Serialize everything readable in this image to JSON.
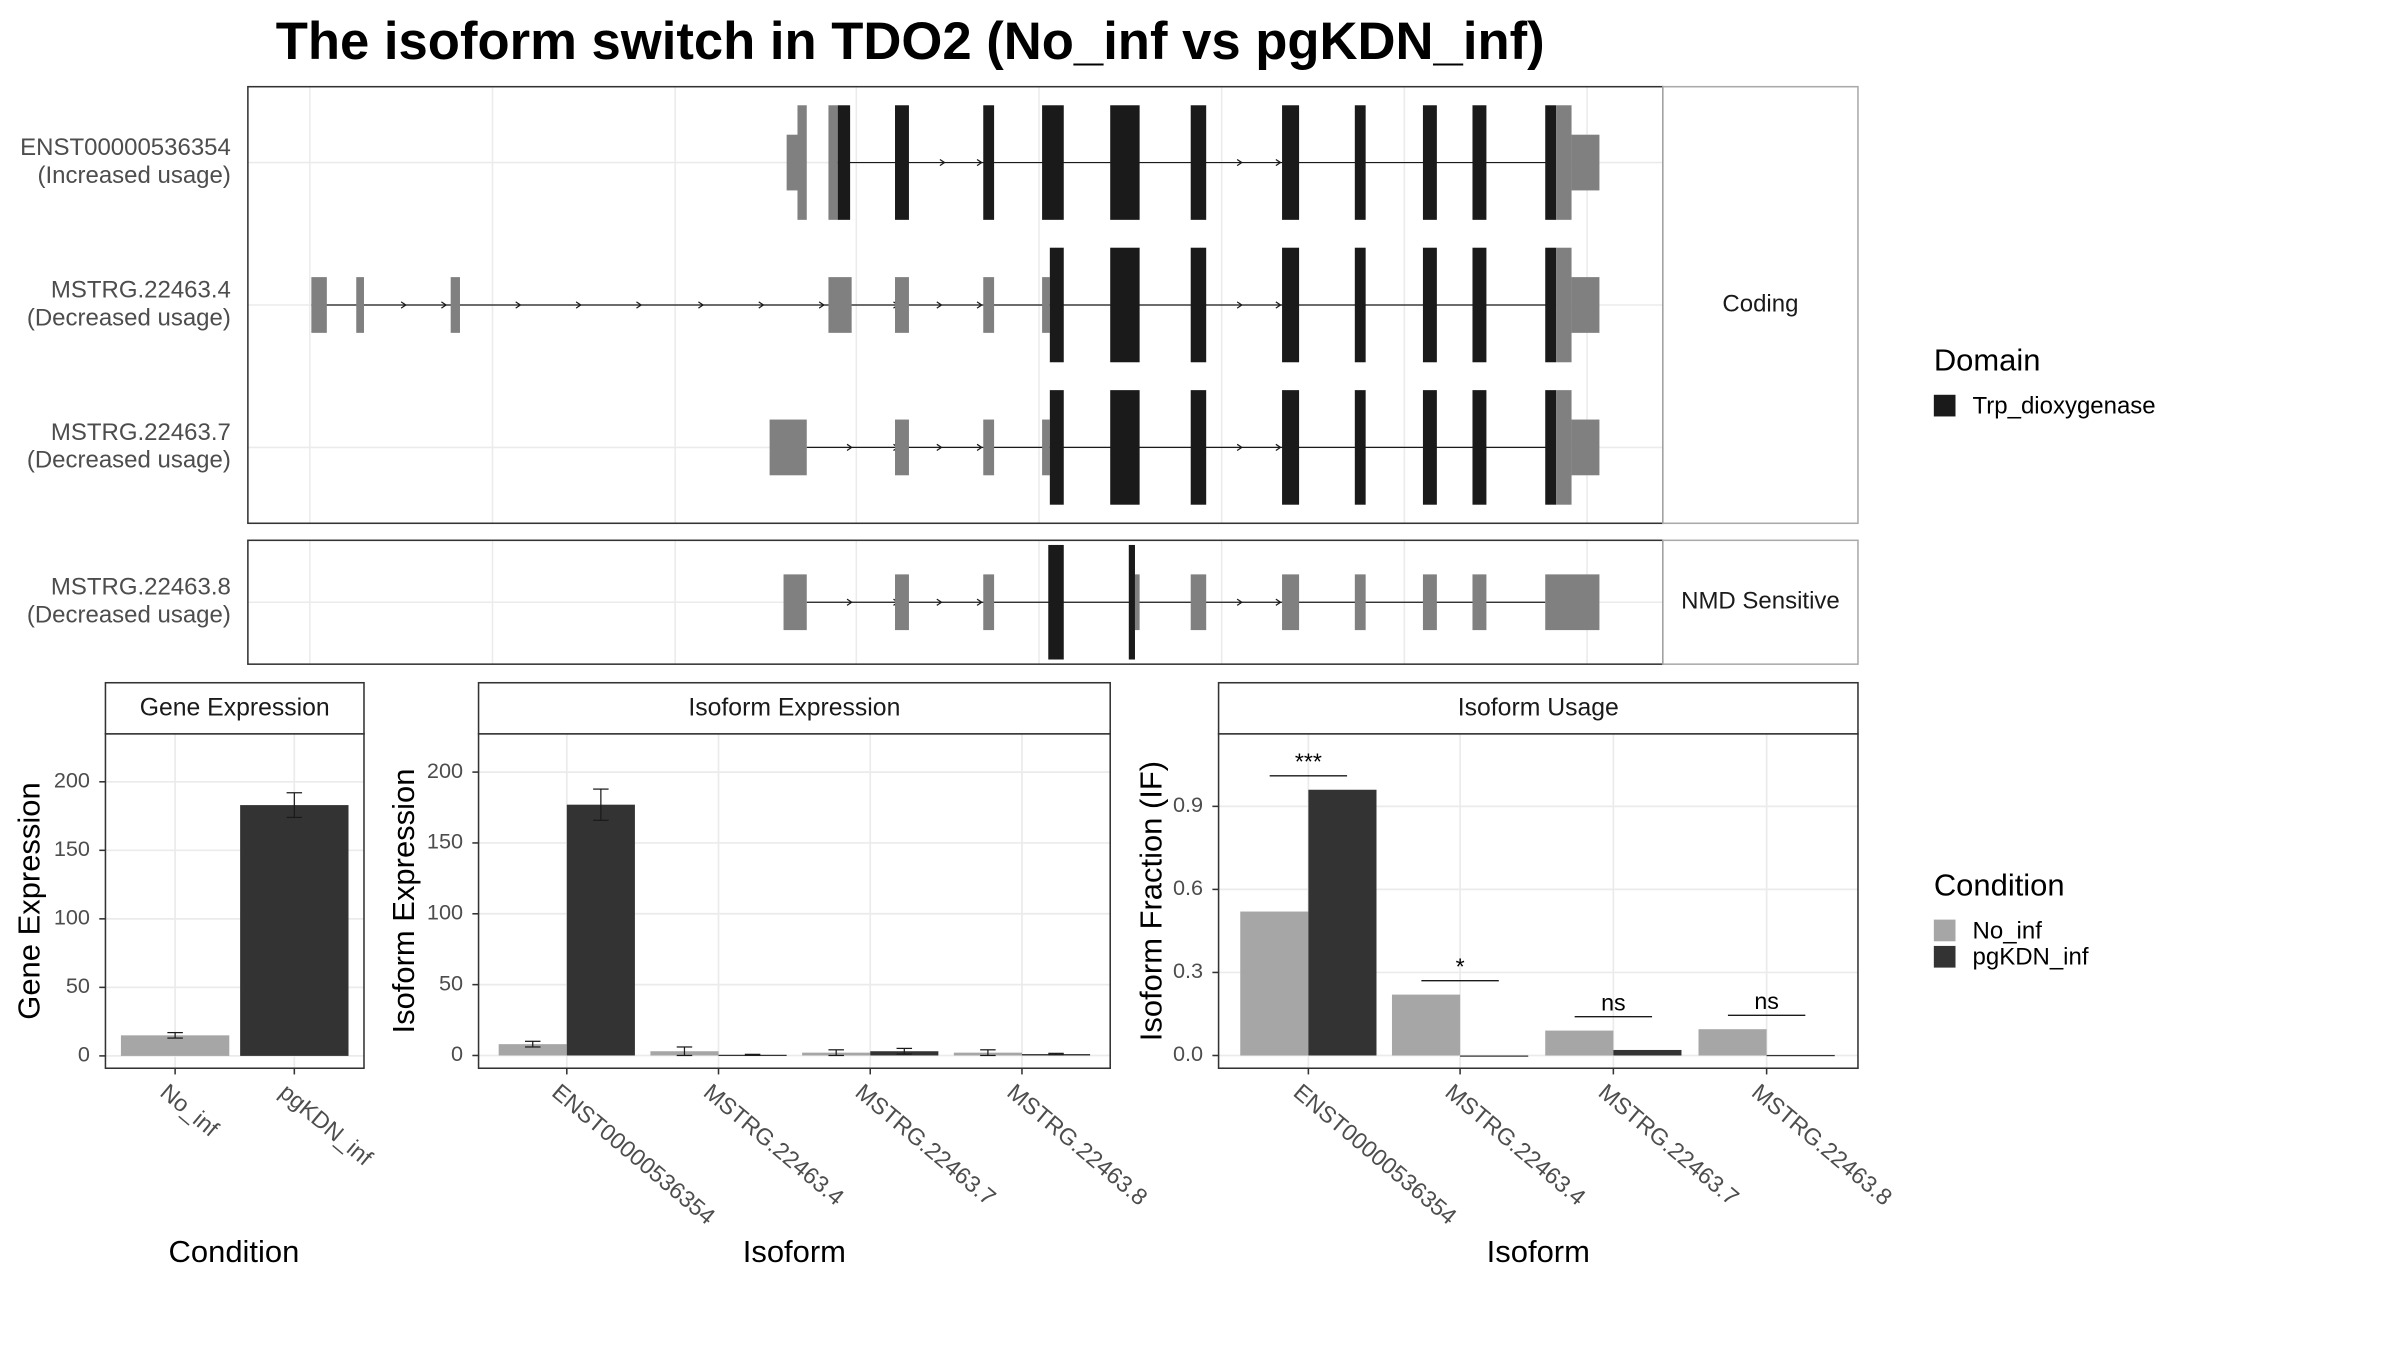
{
  "title": "The isoform switch in TDO2 (No_inf vs pgKDN_inf)",
  "structure": {
    "transcripts": [
      {
        "name": "ENST00000536354",
        "usage": "(Increased usage)"
      },
      {
        "name": "MSTRG.22463.4",
        "usage": "(Decreased usage)"
      },
      {
        "name": "MSTRG.22463.7",
        "usage": "(Decreased usage)"
      },
      {
        "name": "MSTRG.22463.8",
        "usage": "(Decreased usage)"
      }
    ],
    "panels": [
      "Coding",
      "NMD Sensitive"
    ],
    "legend_title": "Domain",
    "legend_items": [
      "Trp_dioxygenase"
    ],
    "domain_color": "#1a1a1a",
    "exon_color": "#808080"
  },
  "legend": {
    "title": "Condition"
  },
  "chart_data": [
    {
      "type": "bar",
      "title": "Gene Expression",
      "ylabel": "Gene Expression",
      "xlabel": "Condition",
      "categories": [
        "No_inf",
        "pgKDN_inf"
      ],
      "values": [
        15,
        183
      ],
      "errors": [
        2,
        9
      ],
      "colors": [
        "#a6a6a6",
        "#333333"
      ],
      "ylim": [
        -9,
        235
      ],
      "yticks": [
        0,
        50,
        100,
        150,
        200
      ],
      "grid": true
    },
    {
      "type": "grouped_bar",
      "title": "Isoform Expression",
      "ylabel": "Isoform Expression",
      "xlabel": "Isoform",
      "categories": [
        "ENST00000536354",
        "MSTRG.22463.4",
        "MSTRG.22463.7",
        "MSTRG.22463.8"
      ],
      "series": [
        {
          "name": "No_inf",
          "color": "#a6a6a6",
          "values": [
            8,
            3,
            2,
            2
          ],
          "errors": [
            2,
            3,
            2,
            2
          ]
        },
        {
          "name": "pgKDN_inf",
          "color": "#333333",
          "values": [
            177,
            0.5,
            3,
            1
          ],
          "errors": [
            11,
            0.3,
            2,
            0.5
          ]
        }
      ],
      "ylim": [
        -9,
        227
      ],
      "yticks": [
        0,
        50,
        100,
        150,
        200
      ],
      "grid": true
    },
    {
      "type": "grouped_bar",
      "title": "Isoform Usage",
      "ylabel": "Isoform Fraction (IF)",
      "xlabel": "Isoform",
      "categories": [
        "ENST00000536354",
        "MSTRG.22463.4",
        "MSTRG.22463.7",
        "MSTRG.22463.8"
      ],
      "series": [
        {
          "name": "No_inf",
          "color": "#a6a6a6",
          "values": [
            0.52,
            0.22,
            0.09,
            0.095
          ]
        },
        {
          "name": "pgKDN_inf",
          "color": "#333333",
          "values": [
            0.96,
            0,
            0.02,
            0.002
          ]
        }
      ],
      "significance": [
        "***",
        "*",
        "ns",
        "ns"
      ],
      "ylim": [
        -0.046,
        1.162
      ],
      "yticks": [
        {
          "value": 0,
          "label": "0.0"
        },
        0.3,
        0.6,
        0.9
      ],
      "grid": true
    }
  ]
}
